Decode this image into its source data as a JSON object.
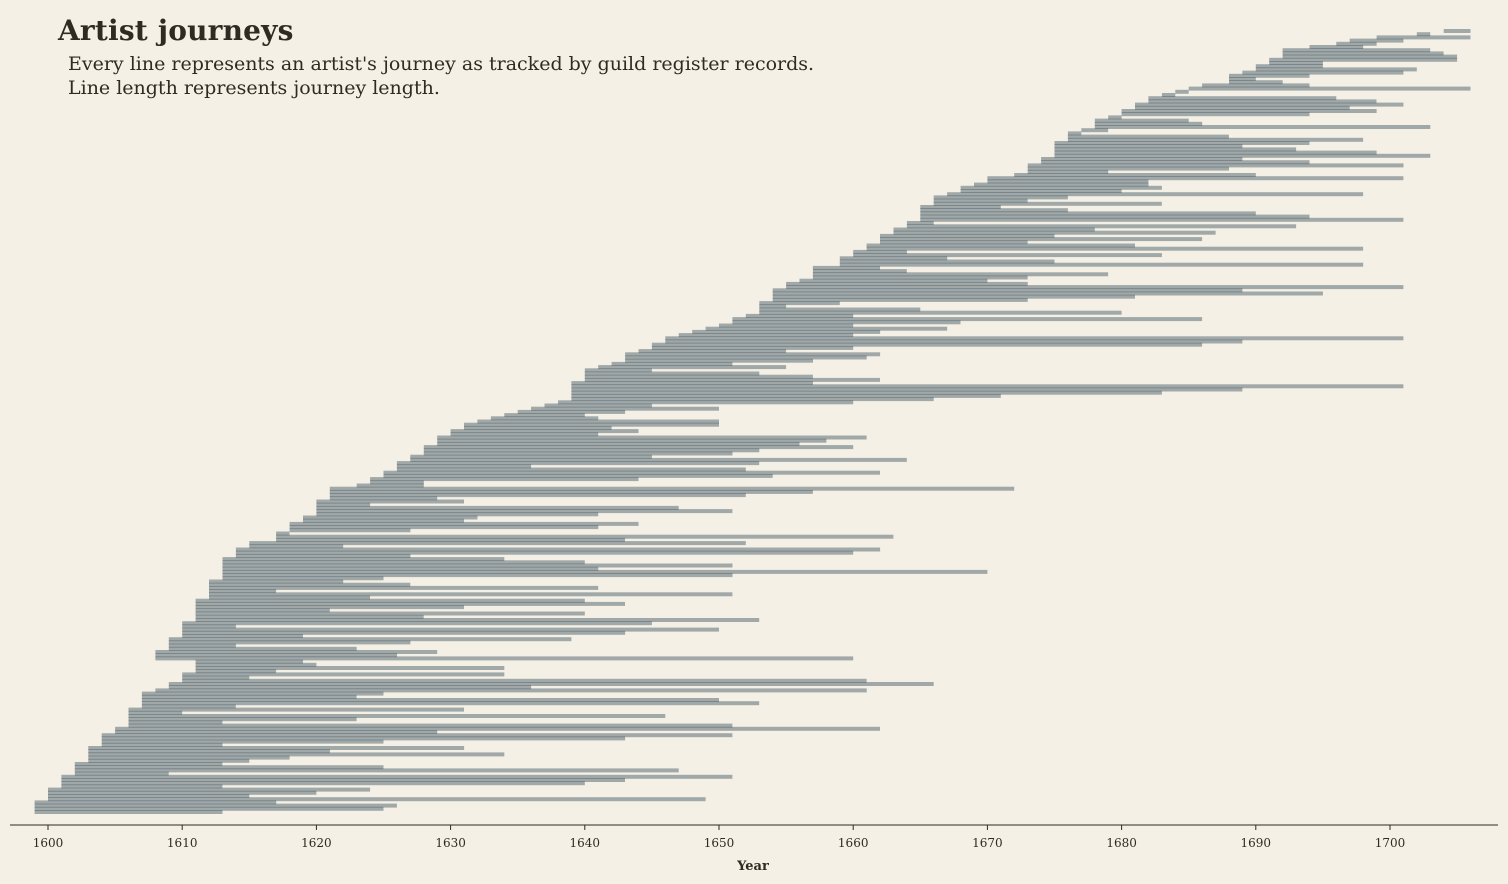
{
  "title": "Artist journeys",
  "subtitle_lines": [
    "Every line represents an artist's journey as tracked by guild register records.",
    "Line length represents journey length."
  ],
  "colors": {
    "background": "#f5f0e6",
    "bar": "#2e4654",
    "bar_light": "#8e999c",
    "text": "#2f2a22"
  },
  "chart_data": {
    "type": "bar",
    "orientation": "horizontal",
    "xlabel": "Year",
    "ylabel": "",
    "xlim": [
      1599,
      1707
    ],
    "xticks": [
      1600,
      1610,
      1620,
      1630,
      1640,
      1650,
      1660,
      1670,
      1680,
      1690,
      1700
    ],
    "grid": false,
    "legend": "none",
    "series": [
      {
        "journeys": [
          [
            1599,
            1613
          ],
          [
            1599,
            1625
          ],
          [
            1599,
            1626
          ],
          [
            1599,
            1617
          ],
          [
            1600,
            1649
          ],
          [
            1600,
            1615
          ],
          [
            1600,
            1620
          ],
          [
            1600,
            1624
          ],
          [
            1601,
            1613
          ],
          [
            1601,
            1640
          ],
          [
            1601,
            1643
          ],
          [
            1601,
            1651
          ],
          [
            1602,
            1609
          ],
          [
            1602,
            1647
          ],
          [
            1602,
            1625
          ],
          [
            1602,
            1613
          ],
          [
            1603,
            1615
          ],
          [
            1603,
            1618
          ],
          [
            1603,
            1634
          ],
          [
            1603,
            1621
          ],
          [
            1603,
            1631
          ],
          [
            1604,
            1613
          ],
          [
            1604,
            1625
          ],
          [
            1604,
            1643
          ],
          [
            1604,
            1651
          ],
          [
            1605,
            1629
          ],
          [
            1605,
            1662
          ],
          [
            1606,
            1651
          ],
          [
            1606,
            1613
          ],
          [
            1606,
            1623
          ],
          [
            1606,
            1646
          ],
          [
            1606,
            1610
          ],
          [
            1606,
            1631
          ],
          [
            1607,
            1614
          ],
          [
            1607,
            1653
          ],
          [
            1607,
            1650
          ],
          [
            1607,
            1623
          ],
          [
            1607,
            1625
          ],
          [
            1608,
            1661
          ],
          [
            1609,
            1636
          ],
          [
            1609,
            1666
          ],
          [
            1610,
            1661
          ],
          [
            1610,
            1615
          ],
          [
            1610,
            1634
          ],
          [
            1611,
            1617
          ],
          [
            1611,
            1634
          ],
          [
            1611,
            1620
          ],
          [
            1611,
            1619
          ],
          [
            1608,
            1660
          ],
          [
            1608,
            1626
          ],
          [
            1608,
            1629
          ],
          [
            1609,
            1623
          ],
          [
            1609,
            1614
          ],
          [
            1609,
            1627
          ],
          [
            1609,
            1639
          ],
          [
            1610,
            1619
          ],
          [
            1610,
            1643
          ],
          [
            1610,
            1650
          ],
          [
            1610,
            1614
          ],
          [
            1610,
            1645
          ],
          [
            1611,
            1653
          ],
          [
            1611,
            1628
          ],
          [
            1611,
            1640
          ],
          [
            1611,
            1621
          ],
          [
            1611,
            1631
          ],
          [
            1611,
            1643
          ],
          [
            1611,
            1640
          ],
          [
            1612,
            1624
          ],
          [
            1612,
            1651
          ],
          [
            1612,
            1617
          ],
          [
            1612,
            1641
          ],
          [
            1612,
            1627
          ],
          [
            1612,
            1622
          ],
          [
            1613,
            1625
          ],
          [
            1613,
            1651
          ],
          [
            1613,
            1670
          ],
          [
            1613,
            1641
          ],
          [
            1613,
            1651
          ],
          [
            1613,
            1640
          ],
          [
            1613,
            1634
          ],
          [
            1614,
            1627
          ],
          [
            1614,
            1660
          ],
          [
            1614,
            1662
          ],
          [
            1615,
            1622
          ],
          [
            1615,
            1652
          ],
          [
            1617,
            1643
          ],
          [
            1617,
            1663
          ],
          [
            1617,
            1618
          ],
          [
            1618,
            1627
          ],
          [
            1618,
            1641
          ],
          [
            1618,
            1644
          ],
          [
            1619,
            1631
          ],
          [
            1619,
            1632
          ],
          [
            1620,
            1641
          ],
          [
            1620,
            1651
          ],
          [
            1620,
            1647
          ],
          [
            1620,
            1624
          ],
          [
            1620,
            1631
          ],
          [
            1621,
            1629
          ],
          [
            1621,
            1652
          ],
          [
            1621,
            1657
          ],
          [
            1621,
            1672
          ],
          [
            1623,
            1628
          ],
          [
            1624,
            1628
          ],
          [
            1624,
            1644
          ],
          [
            1625,
            1654
          ],
          [
            1625,
            1662
          ],
          [
            1626,
            1652
          ],
          [
            1626,
            1636
          ],
          [
            1626,
            1653
          ],
          [
            1627,
            1664
          ],
          [
            1627,
            1645
          ],
          [
            1628,
            1651
          ],
          [
            1628,
            1653
          ],
          [
            1628,
            1660
          ],
          [
            1629,
            1656
          ],
          [
            1629,
            1658
          ],
          [
            1629,
            1661
          ],
          [
            1630,
            1641
          ],
          [
            1630,
            1644
          ],
          [
            1631,
            1642
          ],
          [
            1631,
            1650
          ],
          [
            1632,
            1650
          ],
          [
            1633,
            1641
          ],
          [
            1634,
            1640
          ],
          [
            1635,
            1643
          ],
          [
            1636,
            1650
          ],
          [
            1637,
            1645
          ],
          [
            1638,
            1660
          ],
          [
            1639,
            1666
          ],
          [
            1639,
            1671
          ],
          [
            1639,
            1683
          ],
          [
            1639,
            1689
          ],
          [
            1639,
            1701
          ],
          [
            1639,
            1657
          ],
          [
            1640,
            1662
          ],
          [
            1640,
            1657
          ],
          [
            1640,
            1653
          ],
          [
            1640,
            1645
          ],
          [
            1641,
            1655
          ],
          [
            1642,
            1651
          ],
          [
            1643,
            1657
          ],
          [
            1643,
            1661
          ],
          [
            1643,
            1662
          ],
          [
            1644,
            1655
          ],
          [
            1645,
            1660
          ],
          [
            1645,
            1686
          ],
          [
            1646,
            1689
          ],
          [
            1646,
            1701
          ],
          [
            1647,
            1660
          ],
          [
            1648,
            1662
          ],
          [
            1649,
            1667
          ],
          [
            1650,
            1660
          ],
          [
            1651,
            1668
          ],
          [
            1651,
            1686
          ],
          [
            1652,
            1660
          ],
          [
            1653,
            1680
          ],
          [
            1653,
            1665
          ],
          [
            1653,
            1655
          ],
          [
            1653,
            1659
          ],
          [
            1654,
            1673
          ],
          [
            1654,
            1681
          ],
          [
            1654,
            1695
          ],
          [
            1654,
            1689
          ],
          [
            1655,
            1701
          ],
          [
            1655,
            1673
          ],
          [
            1656,
            1670
          ],
          [
            1657,
            1673
          ],
          [
            1657,
            1679
          ],
          [
            1657,
            1664
          ],
          [
            1657,
            1662
          ],
          [
            1659,
            1698
          ],
          [
            1659,
            1675
          ],
          [
            1659,
            1667
          ],
          [
            1660,
            1683
          ],
          [
            1660,
            1664
          ],
          [
            1661,
            1698
          ],
          [
            1661,
            1681
          ],
          [
            1662,
            1673
          ],
          [
            1662,
            1686
          ],
          [
            1662,
            1675
          ],
          [
            1663,
            1687
          ],
          [
            1663,
            1678
          ],
          [
            1664,
            1693
          ],
          [
            1664,
            1666
          ],
          [
            1665,
            1701
          ],
          [
            1665,
            1694
          ],
          [
            1665,
            1690
          ],
          [
            1665,
            1676
          ],
          [
            1665,
            1671
          ],
          [
            1666,
            1683
          ],
          [
            1666,
            1673
          ],
          [
            1666,
            1676
          ],
          [
            1667,
            1698
          ],
          [
            1668,
            1680
          ],
          [
            1668,
            1683
          ],
          [
            1669,
            1682
          ],
          [
            1670,
            1682
          ],
          [
            1670,
            1701
          ],
          [
            1672,
            1690
          ],
          [
            1673,
            1679
          ],
          [
            1673,
            1688
          ],
          [
            1673,
            1701
          ],
          [
            1674,
            1694
          ],
          [
            1674,
            1689
          ],
          [
            1675,
            1703
          ],
          [
            1675,
            1699
          ],
          [
            1675,
            1693
          ],
          [
            1675,
            1689
          ],
          [
            1675,
            1694
          ],
          [
            1676,
            1698
          ],
          [
            1676,
            1688
          ],
          [
            1676,
            1677
          ],
          [
            1677,
            1679
          ],
          [
            1678,
            1703
          ],
          [
            1678,
            1686
          ],
          [
            1678,
            1685
          ],
          [
            1679,
            1680
          ],
          [
            1680,
            1694
          ],
          [
            1680,
            1699
          ],
          [
            1681,
            1697
          ],
          [
            1681,
            1701
          ],
          [
            1682,
            1699
          ],
          [
            1682,
            1696
          ],
          [
            1683,
            1684
          ],
          [
            1684,
            1685
          ],
          [
            1685,
            1706
          ],
          [
            1686,
            1694
          ],
          [
            1688,
            1692
          ],
          [
            1688,
            1690
          ],
          [
            1688,
            1694
          ],
          [
            1689,
            1701
          ],
          [
            1690,
            1702
          ],
          [
            1690,
            1695
          ],
          [
            1691,
            1695
          ],
          [
            1691,
            1705
          ],
          [
            1692,
            1705
          ],
          [
            1692,
            1704
          ],
          [
            1692,
            1703
          ],
          [
            1694,
            1698
          ],
          [
            1696,
            1699
          ],
          [
            1697,
            1701
          ],
          [
            1699,
            1706
          ],
          [
            1702,
            1703
          ],
          [
            1704,
            1706
          ]
        ]
      }
    ]
  }
}
